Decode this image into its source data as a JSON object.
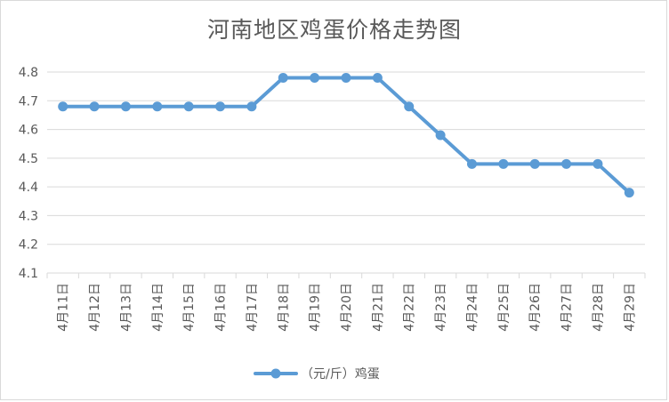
{
  "chart_data": {
    "type": "line",
    "title": "河南地区鸡蛋价格走势图",
    "categories": [
      "4月11日",
      "4月12日",
      "4月13日",
      "4月14日",
      "4月15日",
      "4月16日",
      "4月17日",
      "4月18日",
      "4月19日",
      "4月20日",
      "4月21日",
      "4月22日",
      "4月23日",
      "4月24日",
      "4月25日",
      "4月26日",
      "4月27日",
      "4月28日",
      "4月29日"
    ],
    "series": [
      {
        "name": "（元/斤）鸡蛋",
        "values": [
          4.68,
          4.68,
          4.68,
          4.68,
          4.68,
          4.68,
          4.68,
          4.78,
          4.78,
          4.78,
          4.78,
          4.68,
          4.58,
          4.48,
          4.48,
          4.48,
          4.48,
          4.48,
          4.38
        ],
        "color": "#5b9bd5"
      }
    ],
    "ylim": [
      4.1,
      4.8
    ],
    "yticks": [
      "4.1",
      "4.2",
      "4.3",
      "4.4",
      "4.5",
      "4.6",
      "4.7",
      "4.8"
    ],
    "grid": true,
    "legend_position": "bottom"
  },
  "colors": {
    "line": "#5b9bd5",
    "grid": "#d9d9d9",
    "text": "#595959"
  }
}
